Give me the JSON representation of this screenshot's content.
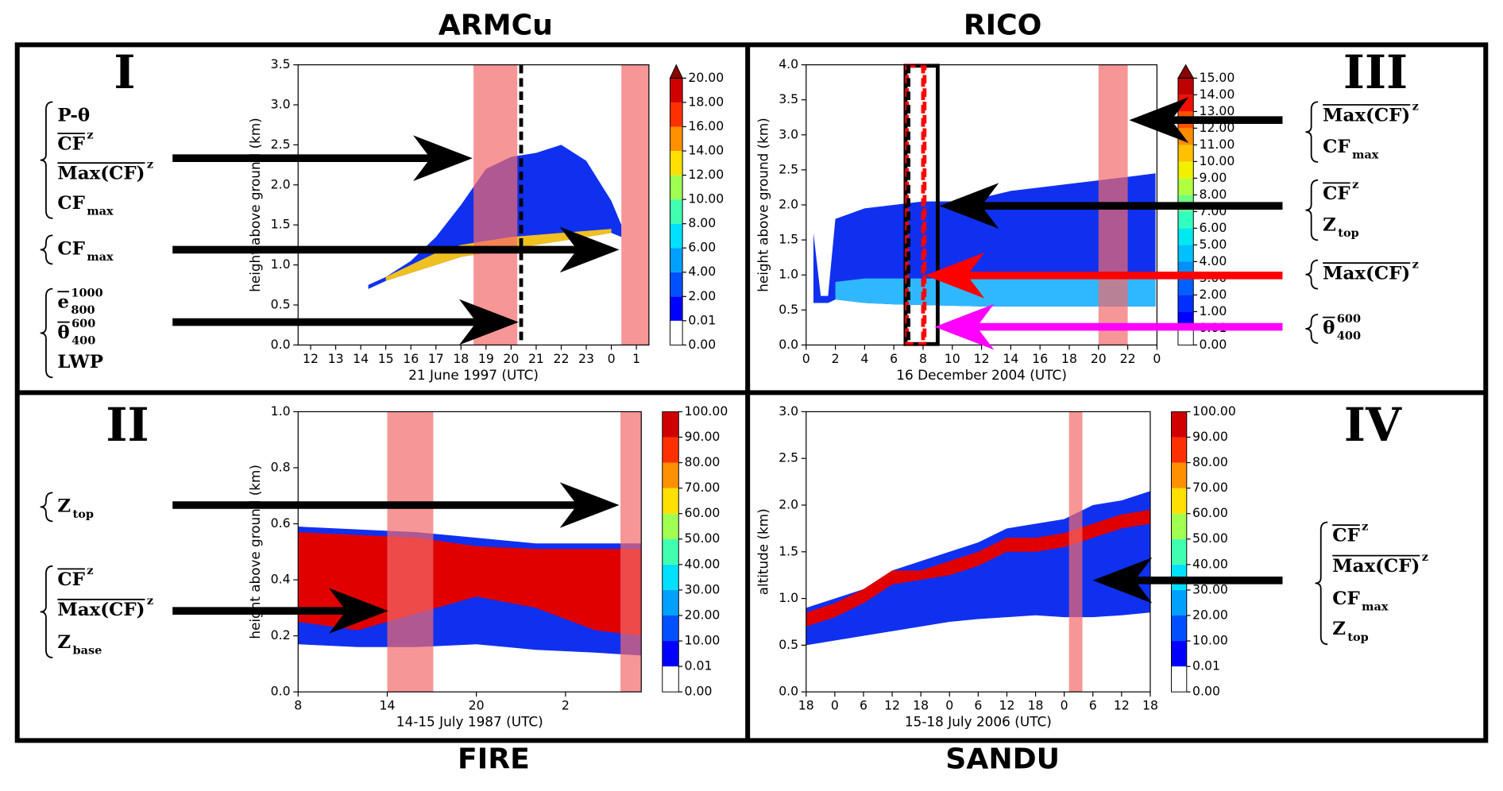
{
  "chart_data": [
    {
      "type": "area",
      "title": "ARMCu",
      "numeral": "I",
      "xlabel": "21 June 1997 (UTC)",
      "ylabel": "height above ground (km)",
      "xlim": [
        11.5,
        25.5
      ],
      "xticks": [
        12,
        13,
        14,
        15,
        16,
        17,
        18,
        19,
        20,
        21,
        22,
        23,
        {
          "value": 24,
          "label": "0"
        },
        {
          "value": 25,
          "label": "1"
        }
      ],
      "ylim": [
        0,
        3.5
      ],
      "yticks": [
        {
          "value": 0,
          "label": "0.0"
        },
        0.5,
        {
          "value": 1,
          "label": "1.0"
        },
        1.5,
        {
          "value": 2,
          "label": "2.0"
        },
        2.5,
        {
          "value": 3,
          "label": "3.0"
        },
        3.5
      ],
      "x": [
        14.3,
        15,
        16,
        17,
        18,
        19,
        20,
        21,
        22,
        23,
        24,
        24.4
      ],
      "top": [
        0.75,
        0.85,
        1.05,
        1.35,
        1.75,
        2.2,
        2.35,
        2.4,
        2.5,
        2.3,
        1.8,
        1.5
      ],
      "base": [
        0.7,
        0.8,
        0.9,
        1.0,
        1.1,
        1.15,
        1.2,
        1.25,
        1.3,
        1.35,
        1.4,
        1.35
      ],
      "color": "#1030f0",
      "core": {
        "x": [
          15,
          16,
          17,
          18,
          19,
          20,
          22,
          24
        ],
        "top": [
          0.85,
          1.0,
          1.15,
          1.25,
          1.3,
          1.35,
          1.4,
          1.45
        ],
        "base": [
          0.8,
          0.9,
          1.0,
          1.1,
          1.15,
          1.2,
          1.3,
          1.4
        ],
        "color": "#f0c020"
      },
      "spans": [
        [
          18.5,
          20.25
        ],
        [
          24.4,
          25.5
        ]
      ],
      "span_color": "#f46a6a",
      "dashed_lines": [
        {
          "x": 20.4,
          "color": "#000000"
        }
      ],
      "colorbar": {
        "ticks": [
          {
            "value": 0,
            "label": "0.00"
          },
          {
            "value": 0.01,
            "label": "0.01"
          },
          {
            "value": 2,
            "label": "2.00"
          },
          {
            "value": 4,
            "label": "4.00"
          },
          {
            "value": 6,
            "label": "6.00"
          },
          {
            "value": 8,
            "label": "8.00"
          },
          {
            "value": 10,
            "label": "10.00"
          },
          {
            "value": 12,
            "label": "12.00"
          },
          {
            "value": 14,
            "label": "14.00"
          },
          {
            "value": 16,
            "label": "16.00"
          },
          {
            "value": 18,
            "label": "18.00"
          },
          {
            "value": 20,
            "label": "20.00"
          }
        ],
        "colors": [
          "#ffffff",
          "#0000ff",
          "#0050ff",
          "#00a0ff",
          "#00e0ff",
          "#40ffb0",
          "#a0ff50",
          "#ffe000",
          "#ff9000",
          "#ff3000",
          "#d00000"
        ],
        "extend_color": "#8b0000"
      },
      "annotations": [
        {
          "arrow_color": "#000000",
          "items": [
            {
              "text": "P-θ"
            },
            {
              "text": "CF",
              "overline": true,
              "sup": "z"
            },
            {
              "text": "Max(CF)",
              "overline": true,
              "sup": "z"
            },
            {
              "text": "CF",
              "sub": "max"
            }
          ]
        },
        {
          "arrow_color": "#000000",
          "items": [
            {
              "text": "CF",
              "sub": "max"
            }
          ]
        },
        {
          "arrow_color": "#000000",
          "items": [
            {
              "text": "e",
              "overline": true,
              "sup": "1000",
              "sub": "800"
            },
            {
              "text": "θ",
              "overline": true,
              "sup": "600",
              "sub": "400"
            },
            {
              "text": "LWP"
            }
          ]
        }
      ]
    },
    {
      "type": "area",
      "title": "RICO",
      "numeral": "III",
      "xlabel": "16 December 2004 (UTC)",
      "ylabel": "height above ground (km)",
      "xlim": [
        0,
        24
      ],
      "xticks": [
        0,
        2,
        4,
        6,
        8,
        10,
        12,
        14,
        16,
        18,
        20,
        22,
        {
          "value": 24,
          "label": "0"
        }
      ],
      "ylim": [
        0,
        4
      ],
      "yticks": [
        {
          "value": 0,
          "label": "0.0"
        },
        0.5,
        {
          "value": 1,
          "label": "1.0"
        },
        1.5,
        {
          "value": 2,
          "label": "2.0"
        },
        2.5,
        {
          "value": 3,
          "label": "3.0"
        },
        3.5,
        {
          "value": 4,
          "label": "4.0"
        }
      ],
      "x": [
        0.5,
        1,
        1.5,
        2,
        4,
        6,
        8,
        10,
        12,
        14,
        16,
        18,
        20,
        22,
        23.9
      ],
      "top": [
        1.6,
        0.7,
        0.7,
        1.8,
        1.95,
        2.0,
        2.05,
        2.05,
        2.1,
        2.2,
        2.25,
        2.3,
        2.35,
        2.4,
        2.45
      ],
      "base": [
        0.6,
        0.6,
        0.6,
        0.65,
        0.6,
        0.58,
        0.57,
        0.56,
        0.55,
        0.55,
        0.55,
        0.55,
        0.55,
        0.55,
        0.55
      ],
      "color": "#1030f0",
      "core": {
        "x": [
          2,
          4,
          6,
          8,
          10,
          12,
          14,
          16,
          18,
          20,
          22,
          23.9
        ],
        "top": [
          0.9,
          0.95,
          0.95,
          0.95,
          0.95,
          0.95,
          0.95,
          0.95,
          0.95,
          0.95,
          0.95,
          0.95
        ],
        "base": [
          0.65,
          0.6,
          0.58,
          0.57,
          0.56,
          0.55,
          0.55,
          0.55,
          0.55,
          0.55,
          0.55,
          0.55
        ],
        "color": "#30b8ff"
      },
      "spans": [
        [
          20,
          22
        ]
      ],
      "span_color": "#f46a6a",
      "dashed_lines": [
        {
          "x": 7.0,
          "color": "#000000"
        },
        {
          "x": 8.0,
          "color": "#ff0000"
        }
      ],
      "boxes": [
        {
          "x": [
            6.8,
            9.0
          ],
          "color": "#000000",
          "dashed": false
        },
        {
          "x": [
            6.9,
            8.1
          ],
          "color": "#ff0000",
          "dashed": true
        }
      ],
      "colorbar": {
        "ticks": [
          {
            "value": 0,
            "label": "0.00"
          },
          {
            "value": 0.01,
            "label": "0.01"
          },
          {
            "value": 1,
            "label": "1.00"
          },
          {
            "value": 2,
            "label": "2.00"
          },
          {
            "value": 3,
            "label": "3.00"
          },
          {
            "value": 4,
            "label": "4.00"
          },
          {
            "value": 5,
            "label": "5.00"
          },
          {
            "value": 6,
            "label": "6.00"
          },
          {
            "value": 7,
            "label": "7.00"
          },
          {
            "value": 8,
            "label": "8.00"
          },
          {
            "value": 9,
            "label": "9.00"
          },
          {
            "value": 10,
            "label": "10.00"
          },
          {
            "value": 11,
            "label": "11.00"
          },
          {
            "value": 12,
            "label": "12.00"
          },
          {
            "value": 13,
            "label": "13.00"
          },
          {
            "value": 14,
            "label": "14.00"
          },
          {
            "value": 15,
            "label": "15.00"
          }
        ],
        "colors": [
          "#ffffff",
          "#0000ff",
          "#0030ff",
          "#0060ff",
          "#0090ff",
          "#00c0ff",
          "#00e8f0",
          "#30ffc0",
          "#70ff80",
          "#b0ff40",
          "#f0f000",
          "#ffc000",
          "#ff8c00",
          "#ff5000",
          "#f01000",
          "#c00000"
        ],
        "extend_color": "#8b0000"
      },
      "annotations": [
        {
          "arrow_color": "#000000",
          "items": [
            {
              "text": "Max(CF)",
              "overline": true,
              "sup": "z"
            },
            {
              "text": "CF",
              "sub": "max"
            }
          ]
        },
        {
          "arrow_color": "#000000",
          "items": [
            {
              "text": "CF",
              "overline": true,
              "sup": "z"
            },
            {
              "text": "Z",
              "sub": "top"
            }
          ]
        },
        {
          "arrow_color": "#ff0000",
          "items": [
            {
              "text": "Max(CF)",
              "overline": true,
              "sup": "z"
            }
          ]
        },
        {
          "arrow_color": "#ff00ff",
          "items": [
            {
              "text": "θ",
              "overline": true,
              "sup": "600",
              "sub": "400"
            }
          ]
        }
      ]
    },
    {
      "type": "area",
      "title": "FIRE",
      "numeral": "II",
      "xlabel": "14-15 July 1987 (UTC)",
      "ylabel": "height above ground (km)",
      "xlim": [
        8,
        31.1
      ],
      "xticks": [
        8,
        14,
        20,
        {
          "value": 26,
          "label": "2"
        }
      ],
      "ylim": [
        0,
        1
      ],
      "yticks": [
        {
          "value": 0,
          "label": "0.0"
        },
        0.2,
        0.4,
        0.6,
        0.8,
        {
          "value": 1,
          "label": "1.0"
        }
      ],
      "x": [
        8,
        12,
        16,
        20,
        24,
        28,
        31.1
      ],
      "top": [
        0.59,
        0.58,
        0.57,
        0.55,
        0.53,
        0.53,
        0.53
      ],
      "base": [
        0.17,
        0.16,
        0.16,
        0.17,
        0.15,
        0.14,
        0.13
      ],
      "color": "#1030f0",
      "core": {
        "x": [
          8,
          12,
          16,
          20,
          24,
          28,
          31.1
        ],
        "top": [
          0.57,
          0.56,
          0.55,
          0.52,
          0.51,
          0.51,
          0.51
        ],
        "base": [
          0.25,
          0.22,
          0.28,
          0.34,
          0.3,
          0.22,
          0.2
        ],
        "color": "#e00000"
      },
      "spans": [
        [
          14,
          17.1
        ],
        [
          29.7,
          31.1
        ]
      ],
      "span_color": "#f46a6a",
      "colorbar": {
        "ticks": [
          {
            "value": 0,
            "label": "0.00"
          },
          {
            "value": 0.01,
            "label": "0.01"
          },
          {
            "value": 10,
            "label": "10.00"
          },
          {
            "value": 20,
            "label": "20.00"
          },
          {
            "value": 30,
            "label": "30.00"
          },
          {
            "value": 40,
            "label": "40.00"
          },
          {
            "value": 50,
            "label": "50.00"
          },
          {
            "value": 60,
            "label": "60.00"
          },
          {
            "value": 70,
            "label": "70.00"
          },
          {
            "value": 80,
            "label": "80.00"
          },
          {
            "value": 90,
            "label": "90.00"
          },
          {
            "value": 100,
            "label": "100.00"
          }
        ],
        "colors": [
          "#ffffff",
          "#0000ff",
          "#0050ff",
          "#00a0ff",
          "#00e0ff",
          "#40ffb0",
          "#a0ff50",
          "#ffe000",
          "#ff9000",
          "#ff3000",
          "#d00000"
        ]
      },
      "annotations": [
        {
          "arrow_color": "#000000",
          "items": [
            {
              "text": "Z",
              "sub": "top"
            }
          ]
        },
        {
          "arrow_color": "#000000",
          "items": [
            {
              "text": "CF",
              "overline": true,
              "sup": "z"
            },
            {
              "text": "Max(CF)",
              "overline": true,
              "sup": "z"
            },
            {
              "text": "Z",
              "sub": "base"
            }
          ]
        }
      ]
    },
    {
      "type": "area",
      "title": "SANDU",
      "numeral": "IV",
      "xlabel": "15-18 July 2006 (UTC)",
      "ylabel": "altitude (km)",
      "xlim": [
        0,
        72
      ],
      "xticks": [
        {
          "value": 0,
          "label": "18"
        },
        {
          "value": 6,
          "label": "0"
        },
        {
          "value": 12,
          "label": "6"
        },
        {
          "value": 18,
          "label": "12"
        },
        {
          "value": 24,
          "label": "18"
        },
        {
          "value": 30,
          "label": "0"
        },
        {
          "value": 36,
          "label": "6"
        },
        {
          "value": 42,
          "label": "12"
        },
        {
          "value": 48,
          "label": "18"
        },
        {
          "value": 54,
          "label": "0"
        },
        {
          "value": 60,
          "label": "6"
        },
        {
          "value": 66,
          "label": "12"
        },
        {
          "value": 72,
          "label": "18"
        }
      ],
      "ylim": [
        0,
        3
      ],
      "yticks": [
        {
          "value": 0,
          "label": "0.0"
        },
        0.5,
        {
          "value": 1,
          "label": "1.0"
        },
        1.5,
        {
          "value": 2,
          "label": "2.0"
        },
        2.5,
        {
          "value": 3,
          "label": "3.0"
        }
      ],
      "x": [
        0,
        6,
        12,
        18,
        24,
        30,
        36,
        42,
        48,
        54,
        60,
        66,
        72
      ],
      "top": [
        0.9,
        1.0,
        1.1,
        1.3,
        1.4,
        1.5,
        1.6,
        1.75,
        1.8,
        1.85,
        2.0,
        2.05,
        2.15
      ],
      "base": [
        0.5,
        0.55,
        0.6,
        0.65,
        0.7,
        0.75,
        0.78,
        0.8,
        0.82,
        0.8,
        0.8,
        0.82,
        0.85
      ],
      "color": "#1030f0",
      "core": {
        "x": [
          0,
          6,
          12,
          18,
          24,
          30,
          36,
          42,
          48,
          54,
          60,
          66,
          72
        ],
        "top": [
          0.85,
          0.95,
          1.1,
          1.3,
          1.3,
          1.4,
          1.5,
          1.65,
          1.65,
          1.7,
          1.8,
          1.9,
          1.95
        ],
        "base": [
          0.7,
          0.8,
          0.95,
          1.15,
          1.2,
          1.25,
          1.35,
          1.5,
          1.5,
          1.55,
          1.65,
          1.75,
          1.8
        ],
        "color": "#e00000"
      },
      "spans": [
        [
          55,
          57.8
        ]
      ],
      "span_color": "#f46a6a",
      "colorbar": {
        "ticks": [
          {
            "value": 0,
            "label": "0.00"
          },
          {
            "value": 0.01,
            "label": "0.01"
          },
          {
            "value": 10,
            "label": "10.00"
          },
          {
            "value": 20,
            "label": "20.00"
          },
          {
            "value": 30,
            "label": "30.00"
          },
          {
            "value": 40,
            "label": "40.00"
          },
          {
            "value": 50,
            "label": "50.00"
          },
          {
            "value": 60,
            "label": "60.00"
          },
          {
            "value": 70,
            "label": "70.00"
          },
          {
            "value": 80,
            "label": "80.00"
          },
          {
            "value": 90,
            "label": "90.00"
          },
          {
            "value": 100,
            "label": "100.00"
          }
        ],
        "colors": [
          "#ffffff",
          "#0000ff",
          "#0050ff",
          "#00a0ff",
          "#00e0ff",
          "#40ffb0",
          "#a0ff50",
          "#ffe000",
          "#ff9000",
          "#ff3000",
          "#d00000"
        ]
      },
      "annotations": [
        {
          "arrow_color": "#000000",
          "items": [
            {
              "text": "CF",
              "overline": true,
              "sup": "z"
            },
            {
              "text": "Max(CF)",
              "overline": true,
              "sup": "z"
            },
            {
              "text": "CF",
              "sub": "max"
            },
            {
              "text": "Z",
              "sub": "top"
            }
          ]
        }
      ]
    }
  ]
}
